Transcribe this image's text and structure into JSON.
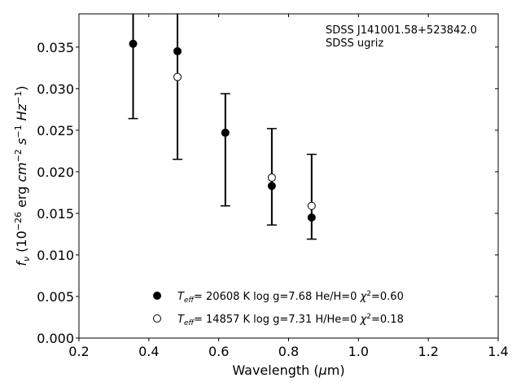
{
  "chart_data": {
    "type": "scatter",
    "xlabel": "Wavelength (μm)",
    "ylabel": "f_ν (10^-26 erg cm^-2 s^-1 Hz^-1)",
    "xlim": [
      0.2,
      1.4
    ],
    "ylim": [
      0.0,
      0.039
    ],
    "xticks": [
      0.2,
      0.4,
      0.6,
      0.8,
      1.0,
      1.2,
      1.4
    ],
    "xtick_labels": [
      "0.2",
      "0.4",
      "0.6",
      "0.8",
      "1.0",
      "1.2",
      "1.4"
    ],
    "yticks": [
      0.0,
      0.005,
      0.01,
      0.015,
      0.02,
      0.025,
      0.03,
      0.035
    ],
    "ytick_labels": [
      "0.000",
      "0.005",
      "0.010",
      "0.015",
      "0.020",
      "0.025",
      "0.030",
      "0.035"
    ],
    "grid": false,
    "legend_position": "bottom-center",
    "annotations": [
      "SDSS J141001.58+523842.0",
      "SDSS ugriz"
    ],
    "observed": {
      "x": [
        0.355,
        0.482,
        0.619,
        0.752,
        0.866
      ],
      "y": [
        0.0354,
        0.0345,
        0.0247,
        0.0183,
        0.0145
      ],
      "yerr_low": [
        0.0264,
        0.0215,
        0.0159,
        0.0136,
        0.0119
      ],
      "yerr_high": [
        0.039,
        0.039,
        0.0294,
        0.0252,
        0.0221
      ]
    },
    "series": [
      {
        "name": "T_eff= 20608 K  log g=7.68  He/H=0  χ²=0.60",
        "marker": "filled",
        "x": [
          0.355,
          0.482,
          0.619,
          0.752,
          0.866
        ],
        "y": [
          0.0354,
          0.0345,
          0.0247,
          0.0183,
          0.0145
        ]
      },
      {
        "name": "T_eff= 14857 K  log g=7.31  H/He=0  χ²=0.18",
        "marker": "open",
        "x": [
          0.482,
          0.752,
          0.866
        ],
        "y": [
          0.0314,
          0.0193,
          0.0159
        ]
      }
    ]
  }
}
